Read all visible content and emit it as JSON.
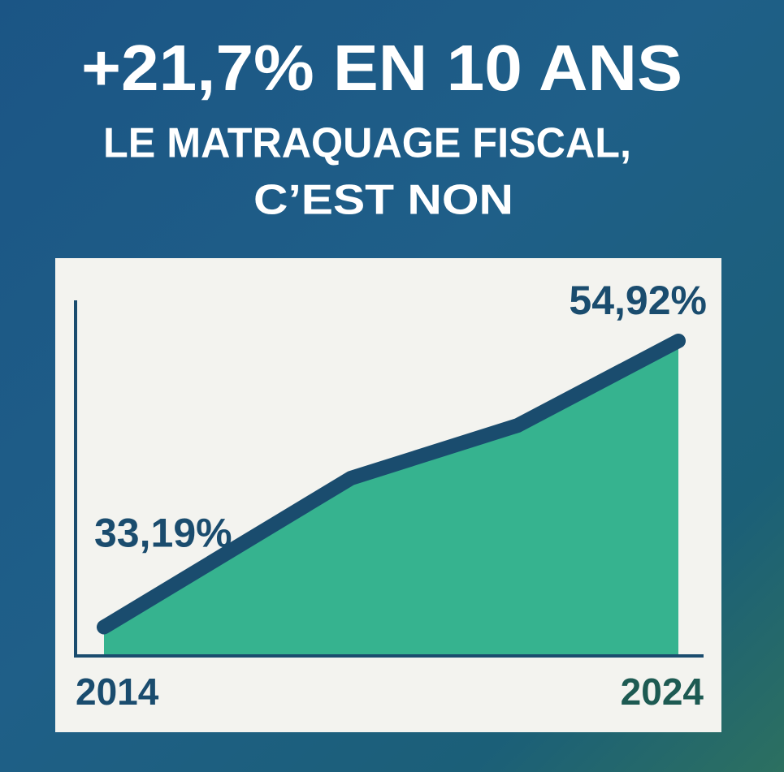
{
  "chart_data": {
    "type": "area",
    "title": "+21,7% EN 10 ANS",
    "subtitle": [
      "LE MATRAQUAGE FISCAL,",
      "C’EST NON"
    ],
    "x": [
      2014,
      2018.3,
      2021.2,
      2024
    ],
    "values": [
      33.19,
      44.5,
      48.5,
      54.92
    ],
    "value_labels": [
      "33,19%",
      null,
      null,
      "54,92%"
    ],
    "xlim": [
      2014,
      2024
    ],
    "xticks": [
      2014,
      2024
    ],
    "ylim": [
      31,
      58
    ],
    "line_color": "#1a4c6e",
    "fill_color": "#36b38f"
  }
}
